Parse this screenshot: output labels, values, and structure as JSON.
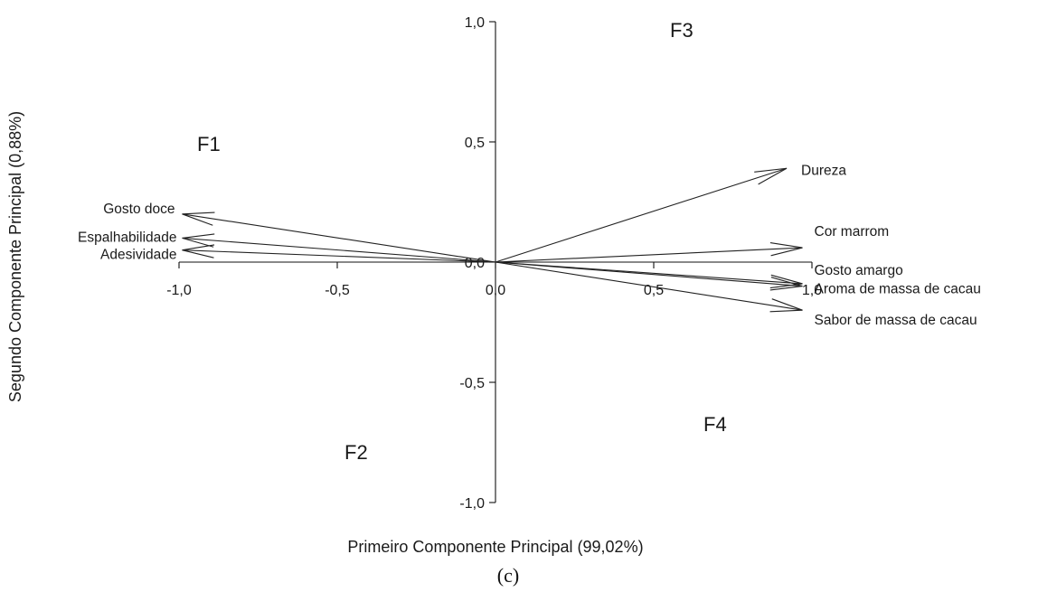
{
  "chart_data": {
    "type": "scatter",
    "subtype": "biplot-vectors",
    "xlabel": "Primeiro Componente Principal (99,02%)",
    "ylabel": "Segundo Componente Principal (0,88%)",
    "xlim": [
      -1.0,
      1.0
    ],
    "ylim": [
      -1.0,
      1.0
    ],
    "x_ticks": [
      -1.0,
      -0.5,
      0.0,
      0.5,
      1.0
    ],
    "y_ticks": [
      -1.0,
      -0.5,
      0.0,
      0.5,
      1.0
    ],
    "x_tick_labels": [
      "-1,0",
      "-0,5",
      "0,0",
      "0,5",
      "1,0"
    ],
    "y_tick_labels": [
      "-1,0",
      "-0,5",
      "0,0",
      "0,5",
      "1,0"
    ],
    "grid": false,
    "vectors": [
      {
        "name": "Gosto doce",
        "x": -0.99,
        "y": 0.2
      },
      {
        "name": "Espalhabilidade",
        "x": -0.99,
        "y": 0.1
      },
      {
        "name": "Adesividade",
        "x": -0.99,
        "y": 0.05
      },
      {
        "name": "Dureza",
        "x": 0.92,
        "y": 0.39
      },
      {
        "name": "Cor marrom",
        "x": 0.97,
        "y": 0.06
      },
      {
        "name": "Gosto amargo",
        "x": 0.97,
        "y": -0.09
      },
      {
        "name": "Aroma de massa de cacau",
        "x": 0.97,
        "y": -0.1
      },
      {
        "name": "Sabor de massa de cacau",
        "x": 0.97,
        "y": -0.2
      }
    ],
    "quadrant_labels": [
      "F1",
      "F2",
      "F3",
      "F4"
    ]
  },
  "caption": "(c)",
  "colors": {
    "axis": "#111111",
    "vector": "#222222",
    "text": "#1a1a1a"
  }
}
